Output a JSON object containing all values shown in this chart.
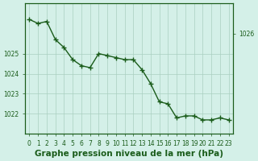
{
  "x": [
    0,
    1,
    2,
    3,
    4,
    5,
    6,
    7,
    8,
    9,
    10,
    11,
    12,
    13,
    14,
    15,
    16,
    17,
    18,
    19,
    20,
    21,
    22,
    23
  ],
  "y": [
    1026.7,
    1026.5,
    1026.6,
    1025.7,
    1025.3,
    1024.7,
    1024.4,
    1024.3,
    1025.0,
    1024.9,
    1024.8,
    1024.7,
    1024.7,
    1024.2,
    1023.5,
    1022.6,
    1022.5,
    1021.8,
    1021.9,
    1021.9,
    1021.7,
    1021.7,
    1021.8,
    1021.7
  ],
  "line_color": "#1a5c1a",
  "marker_color": "#1a5c1a",
  "bg_color": "#d4f0e8",
  "grid_color": "#aad0c0",
  "xlabel": "Graphe pression niveau de la mer (hPa)",
  "xlabel_color": "#1a5c1a",
  "tick_color": "#1a5c1a",
  "ylim_min": 1021.0,
  "ylim_max": 1027.5,
  "yticks": [
    1022,
    1023,
    1024,
    1025
  ],
  "ytick_top": 1026,
  "xticks": [
    0,
    1,
    2,
    3,
    4,
    5,
    6,
    7,
    8,
    9,
    10,
    11,
    12,
    13,
    14,
    15,
    16,
    17,
    18,
    19,
    20,
    21,
    22,
    23
  ],
  "tick_labelsize": 5.5,
  "xlabel_fontsize": 7.5
}
